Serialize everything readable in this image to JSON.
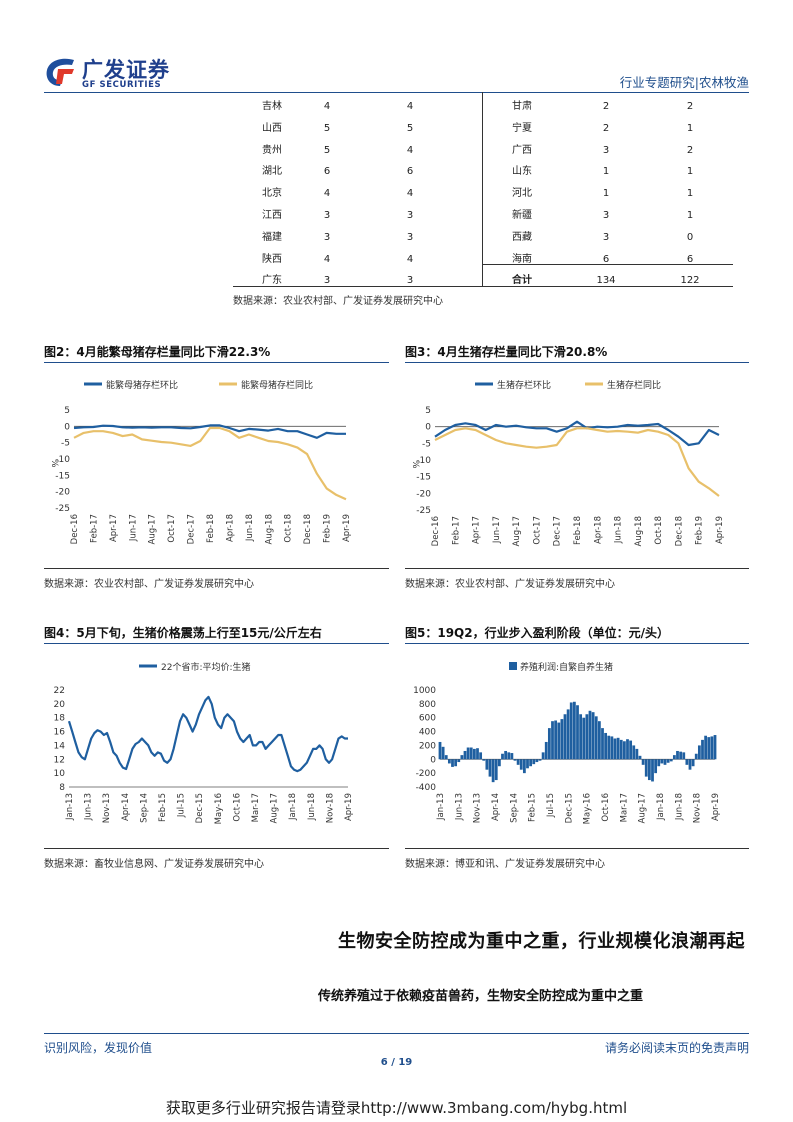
{
  "header": {
    "brand_cn": "广发证券",
    "brand_en": "GF SECURITIES",
    "right_text": "行业专题研究|农林牧渔"
  },
  "table": {
    "left_rows": [
      [
        "吉林",
        "4",
        "4"
      ],
      [
        "山西",
        "5",
        "5"
      ],
      [
        "贵州",
        "5",
        "4"
      ],
      [
        "湖北",
        "6",
        "6"
      ],
      [
        "北京",
        "4",
        "4"
      ],
      [
        "江西",
        "3",
        "3"
      ],
      [
        "福建",
        "3",
        "3"
      ],
      [
        "陕西",
        "4",
        "4"
      ],
      [
        "广东",
        "3",
        "3"
      ]
    ],
    "right_rows": [
      [
        "甘肃",
        "2",
        "2"
      ],
      [
        "宁夏",
        "2",
        "1"
      ],
      [
        "广西",
        "3",
        "2"
      ],
      [
        "山东",
        "1",
        "1"
      ],
      [
        "河北",
        "1",
        "1"
      ],
      [
        "新疆",
        "3",
        "1"
      ],
      [
        "西藏",
        "3",
        "0"
      ],
      [
        "海南",
        "6",
        "6"
      ],
      [
        "合计",
        "134",
        "122"
      ]
    ],
    "source": "数据来源：农业农村部、广发证券发展研究中心"
  },
  "fig2": {
    "title": "图2：4月能繁母猪存栏量同比下滑22.3%",
    "source": "数据来源：农业农村部、广发证券发展研究中心"
  },
  "fig3": {
    "title": "图3：4月生猪存栏量同比下滑20.8%",
    "source": "数据来源：农业农村部、广发证券发展研究中心"
  },
  "fig4": {
    "title": "图4：5月下旬，生猪价格震荡上行至15元/公斤左右",
    "source": "数据来源：畜牧业信息网、广发证券发展研究中心"
  },
  "fig5": {
    "title": "图5：19Q2，行业步入盈利阶段（单位：元/头）",
    "source": "数据来源：博亚和讯、广发证券发展研究中心"
  },
  "section": {
    "heading": "生物安全防控成为重中之重，行业规模化浪潮再起",
    "subheading": "传统养殖过于依赖疫苗兽药，生物安全防控成为重中之重"
  },
  "footer": {
    "left": "识别风险，发现价值",
    "right": "请务必阅读末页的免责声明",
    "page": "6 / 19",
    "promo": "获取更多行业研究报告请登录http://www.3mbang.com/hybg.html"
  },
  "chart_data": [
    {
      "id": "fig2",
      "type": "line",
      "ylabel": "%",
      "ylim": [
        -25,
        5
      ],
      "yticks": [
        5,
        0,
        -5,
        -10,
        -15,
        -20,
        -25
      ],
      "xtick_labels": [
        "Dec-16",
        "Feb-17",
        "Apr-17",
        "Jun-17",
        "Aug-17",
        "Oct-17",
        "Dec-17",
        "Feb-18",
        "Apr-18",
        "Jun-18",
        "Aug-18",
        "Oct-18",
        "Dec-18",
        "Feb-19",
        "Apr-19"
      ],
      "months": [
        "Dec-16",
        "Jan-17",
        "Feb-17",
        "Mar-17",
        "Apr-17",
        "May-17",
        "Jun-17",
        "Jul-17",
        "Aug-17",
        "Sep-17",
        "Oct-17",
        "Nov-17",
        "Dec-17",
        "Jan-18",
        "Feb-18",
        "Mar-18",
        "Apr-18",
        "May-18",
        "Jun-18",
        "Jul-18",
        "Aug-18",
        "Sep-18",
        "Oct-18",
        "Nov-18",
        "Dec-18",
        "Jan-19",
        "Feb-19",
        "Mar-19",
        "Apr-19"
      ],
      "legend_position": "top",
      "series": [
        {
          "name": "能繁母猪存栏环比",
          "color": "#1f5fa0",
          "values": [
            -0.5,
            -0.3,
            -0.2,
            0.2,
            0.1,
            -0.3,
            -0.4,
            -0.3,
            -0.4,
            -0.3,
            -0.3,
            -0.5,
            -0.6,
            -0.2,
            0.3,
            0.3,
            -0.5,
            -1.5,
            -0.8,
            -1.0,
            -1.3,
            -0.8,
            -1.5,
            -1.5,
            -2.5,
            -3.5,
            -2.0,
            -2.3,
            -2.3
          ]
        },
        {
          "name": "能繁母猪存栏同比",
          "color": "#e8c06a",
          "values": [
            -3.5,
            -2,
            -1.5,
            -1.5,
            -2,
            -3.0,
            -2.5,
            -4,
            -4.4,
            -4.8,
            -5.0,
            -5.5,
            -6.0,
            -4.5,
            -0.5,
            -0.5,
            -1.5,
            -3.5,
            -2.5,
            -3.5,
            -4.5,
            -4.8,
            -5.5,
            -6.5,
            -8.5,
            -14.5,
            -19.0,
            -21.0,
            -22.3
          ]
        }
      ]
    },
    {
      "id": "fig3",
      "type": "line",
      "ylabel": "%",
      "ylim": [
        -25,
        5
      ],
      "yticks": [
        5,
        0,
        -5,
        -10,
        -15,
        -20,
        -25
      ],
      "xtick_labels": [
        "Dec-16",
        "Feb-17",
        "Apr-17",
        "Jun-17",
        "Aug-17",
        "Oct-17",
        "Dec-17",
        "Feb-18",
        "Apr-18",
        "Jun-18",
        "Aug-18",
        "Oct-18",
        "Dec-18",
        "Feb-19",
        "Apr-19"
      ],
      "months": [
        "Dec-16",
        "Jan-17",
        "Feb-17",
        "Mar-17",
        "Apr-17",
        "May-17",
        "Jun-17",
        "Jul-17",
        "Aug-17",
        "Sep-17",
        "Oct-17",
        "Nov-17",
        "Dec-17",
        "Jan-18",
        "Feb-18",
        "Mar-18",
        "Apr-18",
        "May-18",
        "Jun-18",
        "Jul-18",
        "Aug-18",
        "Sep-18",
        "Oct-18",
        "Nov-18",
        "Dec-18",
        "Jan-19",
        "Feb-19",
        "Mar-19",
        "Apr-19"
      ],
      "legend_position": "top",
      "series": [
        {
          "name": "生猪存栏环比",
          "color": "#1f5fa0",
          "values": [
            -3.0,
            -1.0,
            0.5,
            1.0,
            0.5,
            -1.0,
            0.5,
            0.0,
            0.3,
            -0.2,
            -0.5,
            -0.5,
            -1.5,
            -0.5,
            1.5,
            -0.5,
            0.0,
            -0.2,
            0.0,
            0.5,
            0.3,
            0.5,
            0.8,
            -1.0,
            -3.0,
            -5.5,
            -5.0,
            -1.0,
            -2.5
          ]
        },
        {
          "name": "生猪存栏同比",
          "color": "#e8c06a",
          "values": [
            -4.0,
            -2.5,
            -1.0,
            -0.5,
            -1.0,
            -2.5,
            -4.0,
            -5.0,
            -5.5,
            -6.0,
            -6.3,
            -6.0,
            -5.5,
            -1.5,
            -0.5,
            -0.5,
            -1.0,
            -1.5,
            -1.3,
            -1.5,
            -1.8,
            -1.0,
            -1.5,
            -2.5,
            -5.0,
            -12.5,
            -16.5,
            -18.5,
            -20.8
          ]
        }
      ]
    },
    {
      "id": "fig4",
      "type": "line",
      "ylim": [
        8,
        22
      ],
      "yticks": [
        22,
        20,
        18,
        16,
        14,
        12,
        10,
        8
      ],
      "xtick_labels": [
        "Jan-13",
        "Jun-13",
        "Nov-13",
        "Apr-14",
        "Sep-14",
        "Feb-15",
        "Jul-15",
        "Dec-15",
        "May-16",
        "Oct-16",
        "Mar-17",
        "Aug-17",
        "Jan-18",
        "Jun-18",
        "Nov-18",
        "Apr-19"
      ],
      "legend_position": "top",
      "series": [
        {
          "name": "22个省市:平均价:生猪",
          "color": "#1f5fa0",
          "values": [
            17.5,
            16.0,
            14.5,
            13.0,
            12.3,
            12.0,
            13.5,
            15.0,
            15.8,
            16.2,
            16.0,
            15.5,
            15.8,
            14.5,
            13.0,
            12.5,
            11.5,
            10.8,
            10.6,
            12.0,
            13.5,
            14.2,
            14.5,
            15.0,
            14.5,
            14.0,
            13.0,
            12.5,
            13.0,
            12.8,
            11.8,
            11.5,
            12.0,
            13.5,
            15.5,
            17.5,
            18.5,
            18.0,
            17.0,
            16.0,
            17.0,
            18.5,
            19.5,
            20.5,
            21.0,
            20.0,
            18.0,
            17.0,
            16.5,
            18.0,
            18.5,
            18.0,
            17.5,
            16.0,
            15.0,
            14.5,
            15.0,
            15.5,
            14.0,
            14.0,
            14.5,
            14.5,
            13.5,
            14.0,
            14.5,
            15.0,
            15.5,
            15.5,
            14.0,
            12.5,
            11.0,
            10.5,
            10.3,
            10.5,
            11.0,
            11.5,
            12.5,
            13.5,
            13.5,
            14.0,
            13.5,
            12.0,
            11.5,
            12.0,
            13.5,
            15.0,
            15.3,
            15.0,
            15.0
          ]
        }
      ]
    },
    {
      "id": "fig5",
      "type": "area",
      "ylim": [
        -400,
        1000
      ],
      "yticks": [
        1000,
        800,
        600,
        400,
        200,
        0,
        -200,
        -400
      ],
      "xtick_labels": [
        "Jan-13",
        "Jun-13",
        "Nov-13",
        "Apr-14",
        "Sep-14",
        "Feb-15",
        "Jul-15",
        "Dec-15",
        "May-16",
        "Oct-16",
        "Mar-17",
        "Aug-17",
        "Jan-18",
        "Jun-18",
        "Nov-18",
        "Apr-19"
      ],
      "legend_position": "top",
      "series": [
        {
          "name": "养殖利润:自繁自养生猪",
          "color": "#1f5fa0",
          "values": [
            250,
            180,
            60,
            -60,
            -110,
            -100,
            -40,
            60,
            120,
            170,
            170,
            150,
            160,
            100,
            -20,
            -150,
            -250,
            -330,
            -300,
            -100,
            80,
            120,
            100,
            90,
            -20,
            -80,
            -150,
            -200,
            -130,
            -100,
            -70,
            -40,
            -20,
            100,
            250,
            450,
            550,
            560,
            530,
            580,
            650,
            720,
            820,
            830,
            780,
            650,
            600,
            650,
            700,
            680,
            620,
            550,
            450,
            380,
            340,
            330,
            300,
            310,
            280,
            260,
            290,
            270,
            200,
            150,
            50,
            -80,
            -250,
            -300,
            -320,
            -200,
            -100,
            -60,
            -80,
            -50,
            -30,
            60,
            120,
            110,
            100,
            -80,
            -150,
            -100,
            80,
            200,
            280,
            340,
            320,
            330,
            350
          ]
        }
      ]
    }
  ]
}
